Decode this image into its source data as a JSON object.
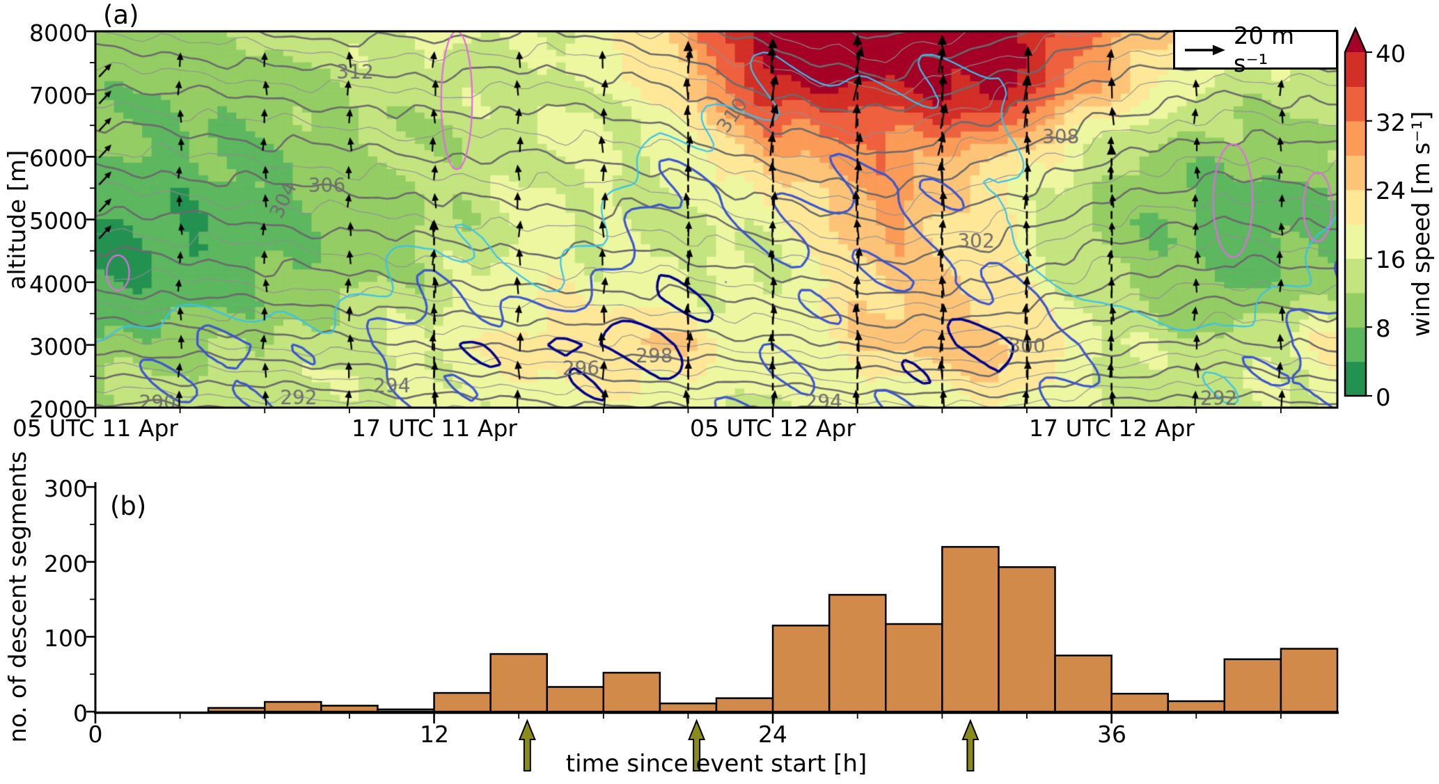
{
  "chart_data": [
    {
      "id": "panel_a",
      "type": "heatmap",
      "title_tag": "(a)",
      "ylabel": "altitude [m]",
      "ylim": [
        2000,
        8000
      ],
      "ytick_labels": [
        "2000",
        "3000",
        "4000",
        "5000",
        "6000",
        "7000",
        "8000"
      ],
      "ytick_values": [
        2000,
        3000,
        4000,
        5000,
        6000,
        7000,
        8000
      ],
      "y_minor_step_m": 500,
      "x_range_hours": [
        0,
        44
      ],
      "xtick_labels": [
        "05 UTC 11 Apr",
        "17 UTC 11 Apr",
        "05 UTC 12 Apr",
        "17 UTC 12 Apr"
      ],
      "xtick_hours": [
        0,
        12,
        24,
        36
      ],
      "x_minor_step_hours": 3,
      "wind_arrow_legend": {
        "label": "20 m s⁻¹",
        "value_m_per_s": 20,
        "icon": "right-arrow"
      },
      "colorbar": {
        "title": "wind speed [m s⁻¹]",
        "tick_labels": [
          "0",
          "8",
          "16",
          "24",
          "32",
          "40"
        ],
        "tick_values": [
          0,
          8,
          16,
          24,
          32,
          40
        ],
        "level_step": 4,
        "segment_colors": [
          "#239250",
          "#5cb75f",
          "#94cd64",
          "#c3e47e",
          "#ecf7a0",
          "#fee898",
          "#fdc478",
          "#fb9b57",
          "#ee613e",
          "#d22f27"
        ],
        "over_color": "#a50026"
      },
      "wind_speed_grid": {
        "t_hours": [
          0,
          4,
          8,
          12,
          16,
          20,
          24,
          28,
          32,
          36,
          40,
          44
        ],
        "z_m_top_to_bottom": [
          8000,
          7500,
          7000,
          6500,
          6000,
          5500,
          5000,
          4500,
          4000,
          3500,
          3000,
          2500,
          2000
        ],
        "values": [
          [
            10,
            11,
            14,
            17,
            15,
            24,
            43,
            44,
            44,
            30,
            18,
            15
          ],
          [
            10,
            10,
            13,
            16,
            15,
            22,
            42,
            42,
            43,
            27,
            16,
            14
          ],
          [
            9,
            9,
            12,
            14,
            15,
            19,
            40,
            38,
            42,
            24,
            14,
            13
          ],
          [
            8,
            8,
            11,
            13,
            16,
            17,
            32,
            34,
            33,
            17,
            11,
            12
          ],
          [
            8,
            7,
            10,
            12,
            16,
            16,
            27,
            31,
            25,
            13,
            9,
            11
          ],
          [
            6,
            6,
            9,
            12,
            17,
            15,
            22,
            30,
            21,
            11,
            7,
            9
          ],
          [
            4,
            5,
            8,
            12,
            17,
            14,
            18,
            29,
            20,
            10,
            6,
            7
          ],
          [
            3,
            4,
            9,
            13,
            18,
            15,
            16,
            27,
            21,
            11,
            6,
            8
          ],
          [
            3,
            6,
            10,
            14,
            19,
            17,
            15,
            26,
            22,
            12,
            7,
            11
          ],
          [
            5,
            8,
            12,
            16,
            21,
            20,
            16,
            25,
            24,
            14,
            10,
            15
          ],
          [
            9,
            11,
            14,
            17,
            23,
            25,
            17,
            25,
            27,
            16,
            13,
            22
          ],
          [
            12,
            13,
            15,
            17,
            20,
            21,
            17,
            20,
            24,
            15,
            14,
            19
          ],
          [
            13,
            14,
            15,
            16,
            18,
            18,
            16,
            17,
            19,
            14,
            14,
            16
          ]
        ]
      },
      "theta_contours": {
        "units": "K",
        "interval": 1,
        "bold_interval": 2,
        "minor_color": "#8f8f8f",
        "major_color": "#6a6a6a",
        "grid": {
          "t_hours": [
            0,
            4,
            8,
            12,
            16,
            20,
            24,
            28,
            32,
            36,
            40,
            44
          ],
          "z_m_top_to_bottom": [
            8000,
            7000,
            6000,
            5000,
            4000,
            3000,
            2000
          ],
          "values": [
            [
              311,
              311.5,
              312.5,
              312.5,
              312,
              313,
              315,
              316.5,
              314.5,
              312.5,
              311.5,
              312
            ],
            [
              307.5,
              308,
              308.5,
              309,
              308.5,
              309.5,
              312,
              313,
              311,
              309,
              308,
              308.5
            ],
            [
              304.5,
              305,
              305.5,
              306,
              306,
              306.5,
              308.5,
              310,
              308,
              306,
              305,
              305.5
            ],
            [
              301.5,
              302,
              302.5,
              303,
              303.5,
              303.5,
              305,
              306.5,
              305,
              303,
              302,
              302.5
            ],
            [
              298.5,
              299,
              299.5,
              300,
              300.5,
              300.5,
              301.5,
              303,
              302,
              300,
              299,
              299.5
            ],
            [
              294.5,
              295,
              295.5,
              296,
              296.5,
              297,
              297.5,
              298.5,
              298,
              296.5,
              295.5,
              296.5
            ],
            [
              289.5,
              290,
              290.5,
              291,
              291.5,
              292,
              292,
              292.5,
              293,
              291.5,
              291,
              292
            ]
          ]
        },
        "labels": [
          {
            "text": "290",
            "t": 2.2,
            "z": 2060,
            "rot": 0
          },
          {
            "text": "292",
            "t": 7.2,
            "z": 2140,
            "rot": 0
          },
          {
            "text": "294",
            "t": 10.5,
            "z": 2330,
            "rot": 0
          },
          {
            "text": "294",
            "t": 25.8,
            "z": 2070,
            "rot": 0
          },
          {
            "text": "296",
            "t": 17.2,
            "z": 2600,
            "rot": 0
          },
          {
            "text": "298",
            "t": 19.8,
            "z": 2800,
            "rot": 0
          },
          {
            "text": "300",
            "t": 33.0,
            "z": 2960,
            "rot": 0
          },
          {
            "text": "302",
            "t": 31.2,
            "z": 4630,
            "rot": 0
          },
          {
            "text": "304",
            "t": 6.7,
            "z": 5300,
            "rot": -65
          },
          {
            "text": "306",
            "t": 8.2,
            "z": 5520,
            "rot": 0
          },
          {
            "text": "308",
            "t": 34.2,
            "z": 6300,
            "rot": 0
          },
          {
            "text": "310",
            "t": 22.6,
            "z": 6650,
            "rot": -55
          },
          {
            "text": "312",
            "t": 9.2,
            "z": 7330,
            "rot": 0
          },
          {
            "text": "292",
            "t": 39.8,
            "z": 2120,
            "rot": 0
          }
        ]
      },
      "moisture_contours": {
        "levels": [
          {
            "value": 70,
            "color": "#36c3ee",
            "width": 2.2
          },
          {
            "value": 80,
            "color": "#3c55cf",
            "width": 3.2
          },
          {
            "value": 90,
            "color": "#00008b",
            "width": 3.6
          }
        ],
        "grid": {
          "t_hours": [
            0,
            4,
            8,
            12,
            16,
            20,
            24,
            28,
            32,
            36,
            40,
            44
          ],
          "z_m_top_to_bottom": [
            8000,
            7000,
            6000,
            5000,
            4000,
            3000,
            2000
          ],
          "values": [
            [
              20,
              25,
              30,
              40,
              35,
              55,
              68,
              62,
              65,
              30,
              25,
              40
            ],
            [
              25,
              30,
              35,
              45,
              40,
              60,
              72,
              72,
              73,
              35,
              30,
              45
            ],
            [
              30,
              35,
              40,
              55,
              45,
              76,
              74,
              78,
              74,
              40,
              35,
              58
            ],
            [
              40,
              45,
              55,
              68,
              55,
              86,
              78,
              85,
              72,
              50,
              45,
              72
            ],
            [
              55,
              62,
              60,
              80,
              70,
              89,
              81,
              82,
              80,
              62,
              60,
              78
            ],
            [
              72,
              82,
              76,
              86,
              90,
              93,
              82,
              88,
              92,
              76,
              74,
              88
            ],
            [
              76,
              79,
              74,
              81,
              84,
              86,
              80,
              82,
              86,
              74,
              72,
              82
            ]
          ]
        }
      },
      "extra_contours_magenta": {
        "color": "#e46ae2",
        "ellipses": [
          {
            "t": 0.8,
            "z": 4150,
            "rt": 0.4,
            "rz": 280
          },
          {
            "t": 12.8,
            "z": 6900,
            "rt": 0.55,
            "rz": 1100
          },
          {
            "t": 40.3,
            "z": 5300,
            "rt": 0.7,
            "rz": 900
          },
          {
            "t": 43.3,
            "z": 5200,
            "rt": 0.5,
            "rz": 550
          }
        ]
      },
      "wind_arrows": {
        "color": "#000000",
        "column_step_hours": 3,
        "first_column_hour": 3,
        "last_column_hour": 42,
        "edge_column": {
          "t": 0.35,
          "tilt_deg": 43
        },
        "tall_dashed": [
          {
            "t": 12,
            "z_bottom": 2060,
            "z_top": 5000
          },
          {
            "t": 21,
            "z_bottom": 2060,
            "z_top": 7850
          },
          {
            "t": 24,
            "z_bottom": 2060,
            "z_top": 7900
          },
          {
            "t": 27,
            "z_bottom": 2060,
            "z_top": 7950
          },
          {
            "t": 30,
            "z_bottom": 2060,
            "z_top": 7950
          },
          {
            "t": 33,
            "z_bottom": 2060,
            "z_top": 7300
          },
          {
            "t": 36,
            "z_bottom": 2060,
            "z_top": 6200
          }
        ]
      }
    },
    {
      "id": "panel_b",
      "type": "bar",
      "title_tag": "(b)",
      "xlabel": "time since event start [h]",
      "ylabel": "no. of descent segments",
      "ylim": [
        0,
        300
      ],
      "ytick_labels": [
        "0",
        "100",
        "200",
        "300"
      ],
      "ytick_values": [
        0,
        100,
        200,
        300
      ],
      "y_minor_step": 50,
      "xtick_labels": [
        "0",
        "12",
        "24",
        "36"
      ],
      "xtick_values": [
        0,
        12,
        24,
        36
      ],
      "x_minor_step": 3,
      "bin_width_hours": 2,
      "bin_start_hours": [
        0,
        2,
        4,
        6,
        8,
        10,
        12,
        14,
        16,
        18,
        20,
        22,
        24,
        26,
        28,
        30,
        32,
        34,
        36,
        38,
        40,
        42
      ],
      "values": [
        0,
        0,
        5,
        13,
        8,
        3,
        25,
        77,
        33,
        52,
        11,
        18,
        115,
        156,
        117,
        220,
        193,
        75,
        24,
        14,
        70,
        84
      ],
      "bar_color": "#d28a4a",
      "bar_edge_color": "#000000",
      "marker_arrows": {
        "color": "#8a8b1a",
        "positions_hours": [
          15.3,
          21.3,
          31.0
        ]
      }
    }
  ]
}
